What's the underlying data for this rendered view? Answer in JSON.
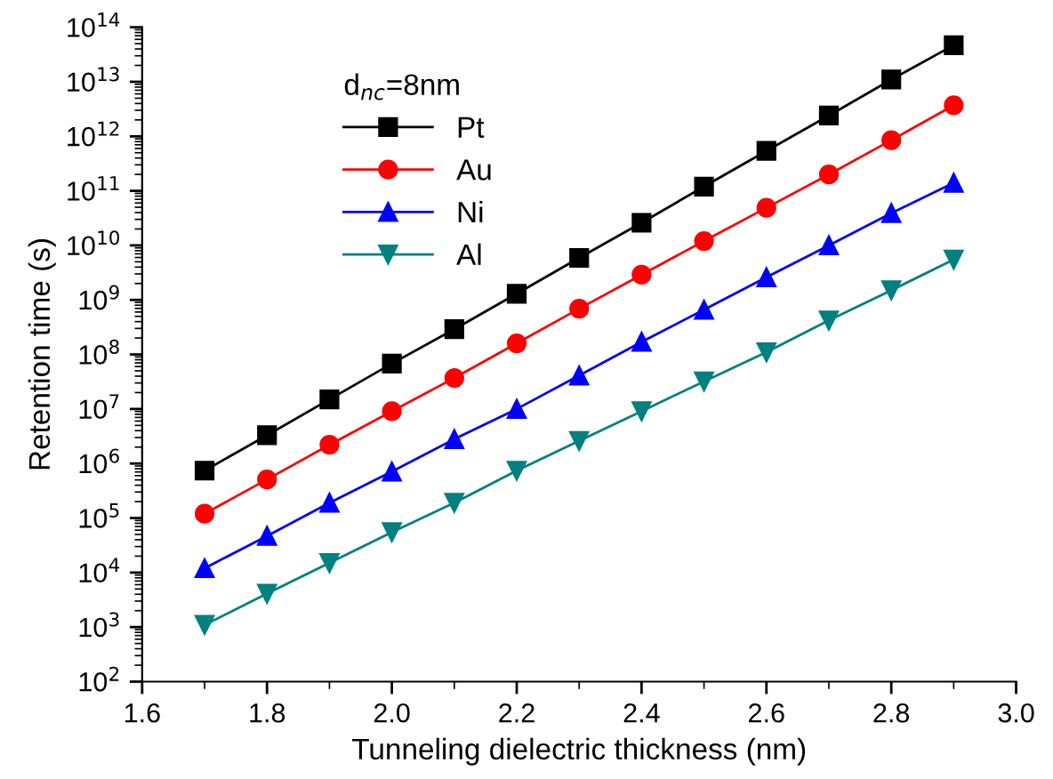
{
  "chart_data": {
    "type": "line",
    "xlabel": "Tunneling dielectric thickness (nm)",
    "ylabel": "Retention time (s)",
    "legend_title": "d$_{nc}$=8nm",
    "legend": "top left",
    "log": "y",
    "grid": false,
    "line_style": "solid",
    "x": [
      1.7,
      1.8,
      1.9,
      2.0,
      2.1,
      2.2,
      2.3,
      2.4,
      2.5,
      2.6,
      2.7,
      2.8,
      2.9
    ],
    "xlim": [
      1.6,
      3.0
    ],
    "xticks": [
      {
        "value": 1.6,
        "label": "1.6"
      },
      {
        "value": 1.8,
        "label": "1.8"
      },
      {
        "value": 2.0,
        "label": "2.0"
      },
      {
        "value": 2.2,
        "label": "2.2"
      },
      {
        "value": 2.4,
        "label": "2.4"
      },
      {
        "value": 2.6,
        "label": "2.6"
      },
      {
        "value": 2.8,
        "label": "2.8"
      },
      {
        "value": 3.0,
        "label": "3.0"
      }
    ],
    "ylim": [
      100,
      100000000000000.0
    ],
    "yticks": [
      {
        "value": 100.0,
        "label": "10$^{2}$"
      },
      {
        "value": 1000.0,
        "label": "10$^{3}$"
      },
      {
        "value": 10000.0,
        "label": "10$^{4}$"
      },
      {
        "value": 100000.0,
        "label": "10$^{5}$"
      },
      {
        "value": 1000000.0,
        "label": "10$^{6}$"
      },
      {
        "value": 10000000.0,
        "label": "10$^{7}$"
      },
      {
        "value": 100000000.0,
        "label": "10$^{8}$"
      },
      {
        "value": 1000000000.0,
        "label": "10$^{9}$"
      },
      {
        "value": 10000000000.0,
        "label": "10$^{10}$"
      },
      {
        "value": 100000000000.0,
        "label": "10$^{11}$"
      },
      {
        "value": 1000000000000.0,
        "label": "10$^{12}$"
      },
      {
        "value": 10000000000000.0,
        "label": "10$^{13}$"
      },
      {
        "value": 100000000000000.0,
        "label": "10$^{14}$"
      }
    ],
    "series": [
      {
        "name": "Pt",
        "color": "#000000",
        "marker": "square",
        "values": [
          740000.0,
          3300000.0,
          15000000.0,
          68000000.0,
          290000000.0,
          1300000000.0,
          5900000000.0,
          26000000000.0,
          120000000000.0,
          540000000000.0,
          2400000000000.0,
          11000000000000.0,
          47000000000000.0
        ]
      },
      {
        "name": "Au",
        "color": "#ff0000",
        "marker": "circle",
        "values": [
          120000.0,
          510000.0,
          2200000.0,
          9100000.0,
          37000000.0,
          160000000.0,
          690000000.0,
          2900000000.0,
          12000000000.0,
          49000000000.0,
          200000000000.0,
          850000000000.0,
          3700000000000.0
        ]
      },
      {
        "name": "Ni",
        "color": "#0000ff",
        "marker": "triangle",
        "values": [
          12000.0,
          47000.0,
          190000.0,
          710000.0,
          2800000.0,
          10000000.0,
          41000000.0,
          170000000.0,
          660000000.0,
          2600000000.0,
          10000000000.0,
          39000000000.0,
          140000000000.0
        ]
      },
      {
        "name": "Al",
        "color": "#008080",
        "marker": "triangle_down",
        "values": [
          1100.0,
          4100.0,
          15000.0,
          55000.0,
          190000.0,
          740000.0,
          2600000.0,
          9100000.0,
          32000000.0,
          110000000.0,
          420000000.0,
          1500000000.0,
          5500000000.0
        ]
      }
    ]
  }
}
